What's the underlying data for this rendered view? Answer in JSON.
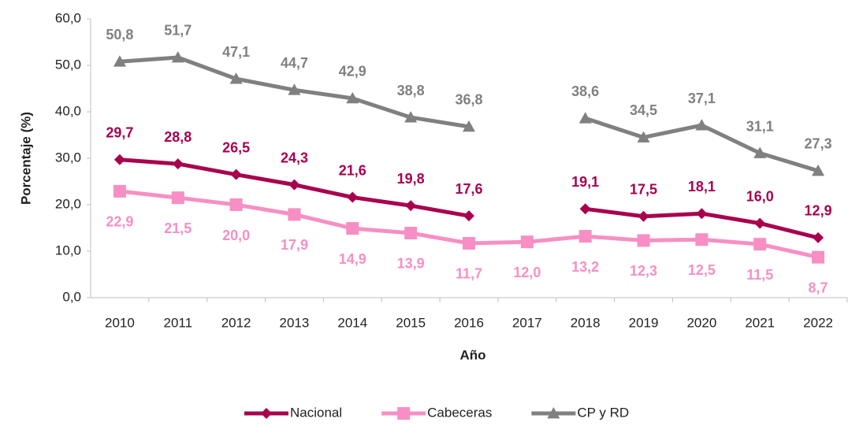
{
  "chart_data": {
    "type": "line",
    "x_label": "Año",
    "y_label": "Porcentaje (%)",
    "categories": [
      "2010",
      "2011",
      "2012",
      "2013",
      "2014",
      "2015",
      "2016",
      "2017",
      "2018",
      "2019",
      "2020",
      "2021",
      "2022"
    ],
    "ylim": [
      0,
      60
    ],
    "yticks": [
      {
        "value": 0,
        "label": "0,0"
      },
      {
        "value": 10,
        "label": "10,0"
      },
      {
        "value": 20,
        "label": "20,0"
      },
      {
        "value": 30,
        "label": "30,0"
      },
      {
        "value": 40,
        "label": "40,0"
      },
      {
        "value": 50,
        "label": "50,0"
      },
      {
        "value": 60,
        "label": "60,0"
      }
    ],
    "grid": false,
    "legend": "bottom",
    "series": [
      {
        "name": "Nacional",
        "color": "#a8004f",
        "marker": "diamond",
        "label_position": "above",
        "values": [
          29.7,
          28.8,
          26.5,
          24.3,
          21.6,
          19.8,
          17.6,
          null,
          19.1,
          17.5,
          18.1,
          16.0,
          12.9
        ],
        "value_labels": [
          "29,7",
          "28,8",
          "26,5",
          "24,3",
          "21,6",
          "19,8",
          "17,6",
          null,
          "19,1",
          "17,5",
          "18,1",
          "16,0",
          "12,9"
        ]
      },
      {
        "name": "Cabeceras",
        "color": "#f78fc4",
        "marker": "square",
        "label_position": "below",
        "values": [
          22.9,
          21.5,
          20.0,
          17.9,
          14.9,
          13.9,
          11.7,
          12.0,
          13.2,
          12.3,
          12.5,
          11.5,
          8.7
        ],
        "value_labels": [
          "22,9",
          "21,5",
          "20,0",
          "17,9",
          "14,9",
          "13,9",
          "11,7",
          "12,0",
          "13,2",
          "12,3",
          "12,5",
          "11,5",
          "8,7"
        ]
      },
      {
        "name": "CP y RD",
        "color": "#808080",
        "marker": "triangle",
        "label_position": "above",
        "values": [
          50.8,
          51.7,
          47.1,
          44.7,
          42.9,
          38.8,
          36.8,
          null,
          38.6,
          34.5,
          37.1,
          31.1,
          27.3
        ],
        "value_labels": [
          "50,8",
          "51,7",
          "47,1",
          "44,7",
          "42,9",
          "38,8",
          "36,8",
          null,
          "38,6",
          "34,5",
          "37,1",
          "31,1",
          "27,3"
        ]
      }
    ]
  }
}
